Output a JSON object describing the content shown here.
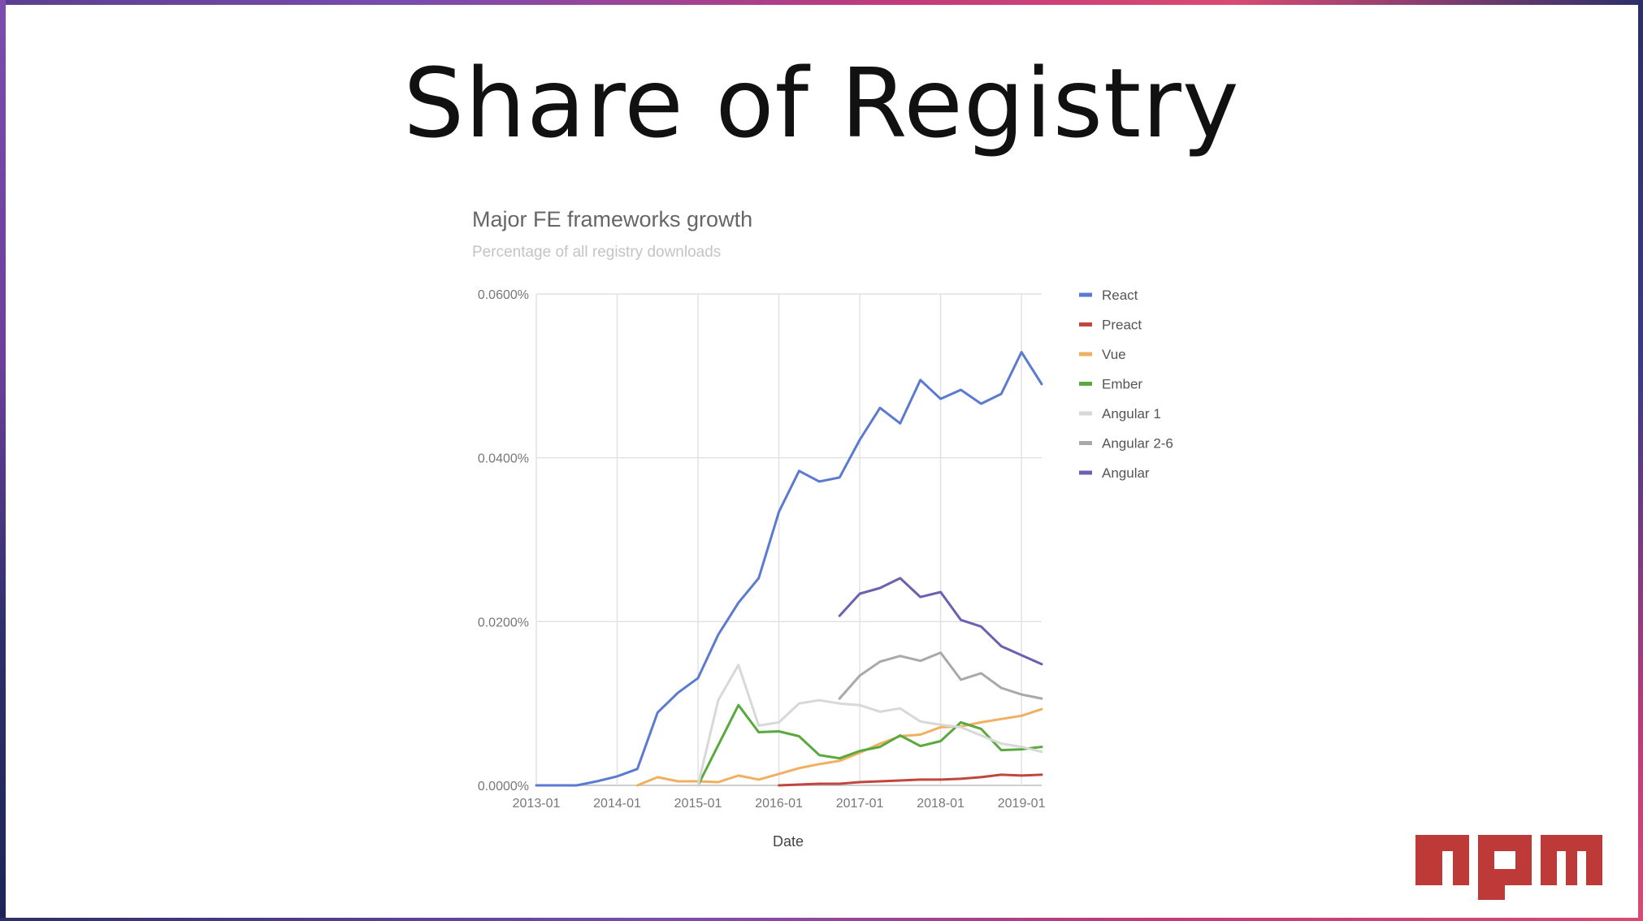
{
  "slide": {
    "title": "Share of Registry",
    "logo_text": "npm"
  },
  "colors": {
    "react": "#5b7bd0",
    "preact": "#c0473f",
    "vue": "#f0b060",
    "ember": "#5aa93f",
    "angular1": "#d8d8d8",
    "angular26": "#a9a9a9",
    "angular": "#6e5fb0",
    "npm_red": "#bd3a39"
  },
  "chart_data": {
    "type": "line",
    "title": "Major FE frameworks growth",
    "subtitle": "Percentage of all registry downloads",
    "xlabel": "Date",
    "ylabel": "",
    "x_ticks": [
      "2013-01",
      "2014-01",
      "2015-01",
      "2016-01",
      "2017-01",
      "2018-01",
      "2019-01"
    ],
    "x_range": [
      "2013-01",
      "2019-04"
    ],
    "y_ticks": [
      "0.0000%",
      "0.0200%",
      "0.0400%",
      "0.0600%"
    ],
    "ylim": [
      0,
      0.06
    ],
    "grid": true,
    "legend_position": "right",
    "series": [
      {
        "name": "React",
        "color_key": "react",
        "points": [
          [
            "2013-01",
            0
          ],
          [
            "2013-04",
            0
          ],
          [
            "2013-07",
            0
          ],
          [
            "2013-10",
            0.0005
          ],
          [
            "2014-01",
            0.0011
          ],
          [
            "2014-04",
            0.002
          ],
          [
            "2014-07",
            0.0089
          ],
          [
            "2014-10",
            0.0113
          ],
          [
            "2015-01",
            0.0131
          ],
          [
            "2015-04",
            0.0184
          ],
          [
            "2015-07",
            0.0223
          ],
          [
            "2015-10",
            0.0253
          ],
          [
            "2016-01",
            0.0334
          ],
          [
            "2016-04",
            0.0384
          ],
          [
            "2016-07",
            0.0371
          ],
          [
            "2016-10",
            0.0376
          ],
          [
            "2017-01",
            0.0422
          ],
          [
            "2017-04",
            0.0461
          ],
          [
            "2017-07",
            0.0442
          ],
          [
            "2017-10",
            0.0495
          ],
          [
            "2018-01",
            0.0472
          ],
          [
            "2018-04",
            0.0483
          ],
          [
            "2018-07",
            0.0466
          ],
          [
            "2018-10",
            0.0478
          ],
          [
            "2019-01",
            0.0529
          ],
          [
            "2019-04",
            0.049
          ]
        ]
      },
      {
        "name": "Preact",
        "color_key": "preact",
        "points": [
          [
            "2016-01",
            0
          ],
          [
            "2016-04",
            0.0001
          ],
          [
            "2016-07",
            0.0002
          ],
          [
            "2016-10",
            0.0002
          ],
          [
            "2017-01",
            0.0004
          ],
          [
            "2017-04",
            0.0005
          ],
          [
            "2017-07",
            0.0006
          ],
          [
            "2017-10",
            0.0007
          ],
          [
            "2018-01",
            0.0007
          ],
          [
            "2018-04",
            0.0008
          ],
          [
            "2018-07",
            0.001
          ],
          [
            "2018-10",
            0.0013
          ],
          [
            "2019-01",
            0.0012
          ],
          [
            "2019-04",
            0.0013
          ]
        ]
      },
      {
        "name": "Vue",
        "color_key": "vue",
        "points": [
          [
            "2014-04",
            0
          ],
          [
            "2014-07",
            0.001
          ],
          [
            "2014-10",
            0.0005
          ],
          [
            "2015-01",
            0.0005
          ],
          [
            "2015-04",
            0.0004
          ],
          [
            "2015-07",
            0.0012
          ],
          [
            "2015-10",
            0.0007
          ],
          [
            "2016-01",
            0.0014
          ],
          [
            "2016-04",
            0.0021
          ],
          [
            "2016-07",
            0.0026
          ],
          [
            "2016-10",
            0.003
          ],
          [
            "2017-01",
            0.004
          ],
          [
            "2017-04",
            0.0051
          ],
          [
            "2017-07",
            0.006
          ],
          [
            "2017-10",
            0.0062
          ],
          [
            "2018-01",
            0.0071
          ],
          [
            "2018-04",
            0.0072
          ],
          [
            "2018-07",
            0.0077
          ],
          [
            "2018-10",
            0.0081
          ],
          [
            "2019-01",
            0.0085
          ],
          [
            "2019-04",
            0.0093
          ]
        ]
      },
      {
        "name": "Ember",
        "color_key": "ember",
        "points": [
          [
            "2015-01",
            0
          ],
          [
            "2015-04",
            0.0049
          ],
          [
            "2015-07",
            0.0098
          ],
          [
            "2015-10",
            0.0065
          ],
          [
            "2016-01",
            0.0066
          ],
          [
            "2016-04",
            0.006
          ],
          [
            "2016-07",
            0.0037
          ],
          [
            "2016-10",
            0.0033
          ],
          [
            "2017-01",
            0.0042
          ],
          [
            "2017-04",
            0.0047
          ],
          [
            "2017-07",
            0.0061
          ],
          [
            "2017-10",
            0.0048
          ],
          [
            "2018-01",
            0.0054
          ],
          [
            "2018-04",
            0.0077
          ],
          [
            "2018-07",
            0.0069
          ],
          [
            "2018-10",
            0.0043
          ],
          [
            "2019-01",
            0.0044
          ],
          [
            "2019-04",
            0.0047
          ]
        ]
      },
      {
        "name": "Angular 1",
        "color_key": "angular1",
        "points": [
          [
            "2015-01",
            0
          ],
          [
            "2015-04",
            0.0104
          ],
          [
            "2015-07",
            0.0147
          ],
          [
            "2015-10",
            0.0073
          ],
          [
            "2016-01",
            0.0077
          ],
          [
            "2016-04",
            0.01
          ],
          [
            "2016-07",
            0.0104
          ],
          [
            "2016-10",
            0.01
          ],
          [
            "2017-01",
            0.0098
          ],
          [
            "2017-04",
            0.009
          ],
          [
            "2017-07",
            0.0094
          ],
          [
            "2017-10",
            0.0078
          ],
          [
            "2018-01",
            0.0074
          ],
          [
            "2018-04",
            0.0071
          ],
          [
            "2018-07",
            0.0061
          ],
          [
            "2018-10",
            0.0051
          ],
          [
            "2019-01",
            0.0047
          ],
          [
            "2019-04",
            0.0041
          ]
        ]
      },
      {
        "name": "Angular 2-6",
        "color_key": "angular26",
        "points": [
          [
            "2016-10",
            0.0106
          ],
          [
            "2017-01",
            0.0134
          ],
          [
            "2017-04",
            0.0151
          ],
          [
            "2017-07",
            0.0158
          ],
          [
            "2017-10",
            0.0152
          ],
          [
            "2018-01",
            0.0162
          ],
          [
            "2018-04",
            0.0129
          ],
          [
            "2018-07",
            0.0137
          ],
          [
            "2018-10",
            0.0119
          ],
          [
            "2019-01",
            0.0111
          ],
          [
            "2019-04",
            0.0106
          ]
        ]
      },
      {
        "name": "Angular",
        "color_key": "angular",
        "points": [
          [
            "2016-10",
            0.0207
          ],
          [
            "2017-01",
            0.0234
          ],
          [
            "2017-04",
            0.0241
          ],
          [
            "2017-07",
            0.0253
          ],
          [
            "2017-10",
            0.023
          ],
          [
            "2018-01",
            0.0236
          ],
          [
            "2018-04",
            0.0202
          ],
          [
            "2018-07",
            0.0194
          ],
          [
            "2018-10",
            0.017
          ],
          [
            "2019-01",
            0.0159
          ],
          [
            "2019-04",
            0.0148
          ]
        ]
      }
    ]
  }
}
